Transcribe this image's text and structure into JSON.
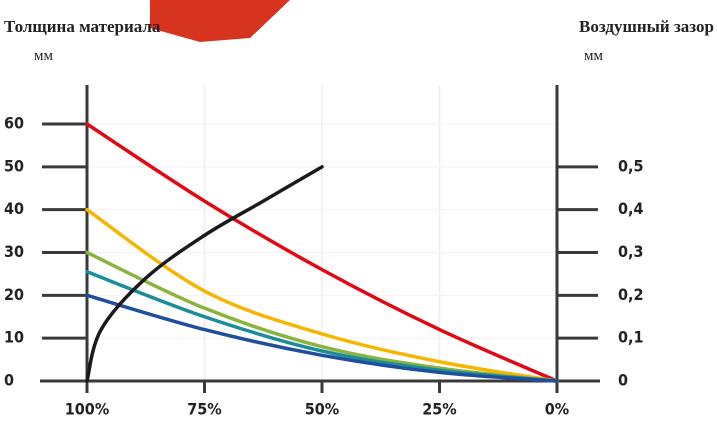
{
  "chart_data": {
    "type": "line",
    "y_label": "Толщина материала",
    "y_unit": "мм",
    "y2_label": "Воздушный зазор",
    "y2_unit": "мм",
    "xlim": [
      100,
      0
    ],
    "xticks": [
      {
        "value": 100,
        "label": "100%"
      },
      {
        "value": 75,
        "label": "75%"
      },
      {
        "value": 50,
        "label": "50%"
      },
      {
        "value": 25,
        "label": "25%"
      },
      {
        "value": 0,
        "label": "0%"
      }
    ],
    "ylim": [
      0,
      60
    ],
    "yticks": [
      0,
      10,
      20,
      30,
      40,
      50,
      60
    ],
    "y2lim": [
      0,
      0.6
    ],
    "y2ticks": [
      0,
      {
        "value": 0.1,
        "label": "0,1"
      },
      {
        "value": 0.2,
        "label": "0,2"
      },
      {
        "value": 0.3,
        "label": "0,3"
      },
      {
        "value": 0.4,
        "label": "0,4"
      },
      {
        "value": 0.5,
        "label": "0,5"
      }
    ],
    "grid": true,
    "series": [
      {
        "color": "#e30613",
        "x": [
          100,
          75,
          50,
          25,
          0
        ],
        "values": [
          60,
          42,
          26,
          12,
          0
        ]
      },
      {
        "color": "#f7b500",
        "x": [
          100,
          75,
          50,
          25,
          0
        ],
        "values": [
          40,
          21,
          11,
          4.5,
          0
        ]
      },
      {
        "color": "#8ab43c",
        "x": [
          100,
          75,
          50,
          25,
          0
        ],
        "values": [
          30,
          17,
          8,
          3,
          0
        ]
      },
      {
        "color": "#1a8c9a",
        "x": [
          100,
          75,
          50,
          25,
          0
        ],
        "values": [
          25.5,
          15,
          7,
          2.5,
          0
        ]
      },
      {
        "color": "#1f4e9c",
        "x": [
          100,
          75,
          50,
          25,
          0
        ],
        "values": [
          20,
          12,
          6,
          2,
          0
        ]
      },
      {
        "color": "#1a1a1a",
        "axis": "y2",
        "x": [
          100,
          97,
          87.5,
          75,
          62.5,
          50
        ],
        "values": [
          0,
          0.12,
          0.24,
          0.34,
          0.42,
          0.5
        ]
      }
    ]
  }
}
